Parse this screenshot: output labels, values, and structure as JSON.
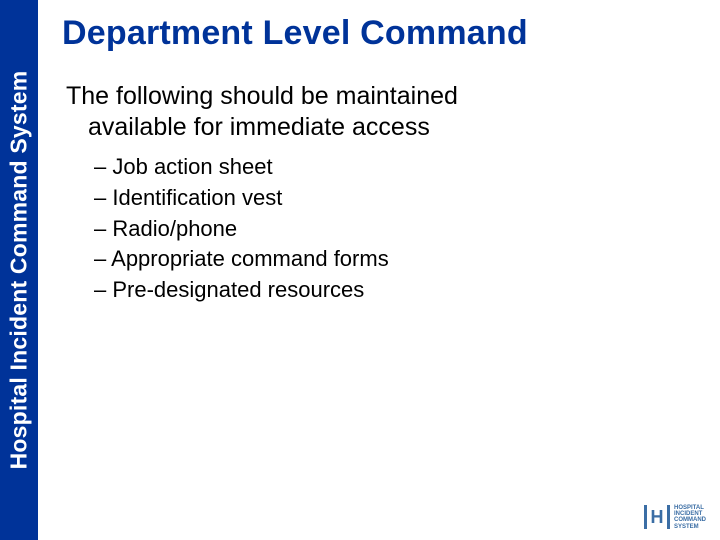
{
  "colors": {
    "sidebar_bg": "#003399",
    "sidebar_text": "#ffffff",
    "title_text": "#003399",
    "body_text": "#000000",
    "background": "#ffffff",
    "logo": "#3b6ea5"
  },
  "sidebar": {
    "label": "Hospital Incident Command System"
  },
  "slide": {
    "title": "Department Level Command",
    "intro_line1": "The following should be maintained",
    "intro_line2": "available for immediate access",
    "bullets": [
      "Job action sheet",
      "Identification vest",
      "Radio/phone",
      "Appropriate command forms",
      "Pre-designated resources"
    ]
  },
  "logo": {
    "mark": "H",
    "line1": "Hospital",
    "line2": "Incident",
    "line3": "Command",
    "line4": "System"
  },
  "typography": {
    "title_fontsize": 34,
    "intro_fontsize": 25,
    "bullet_fontsize": 22,
    "sidebar_fontsize": 23
  }
}
